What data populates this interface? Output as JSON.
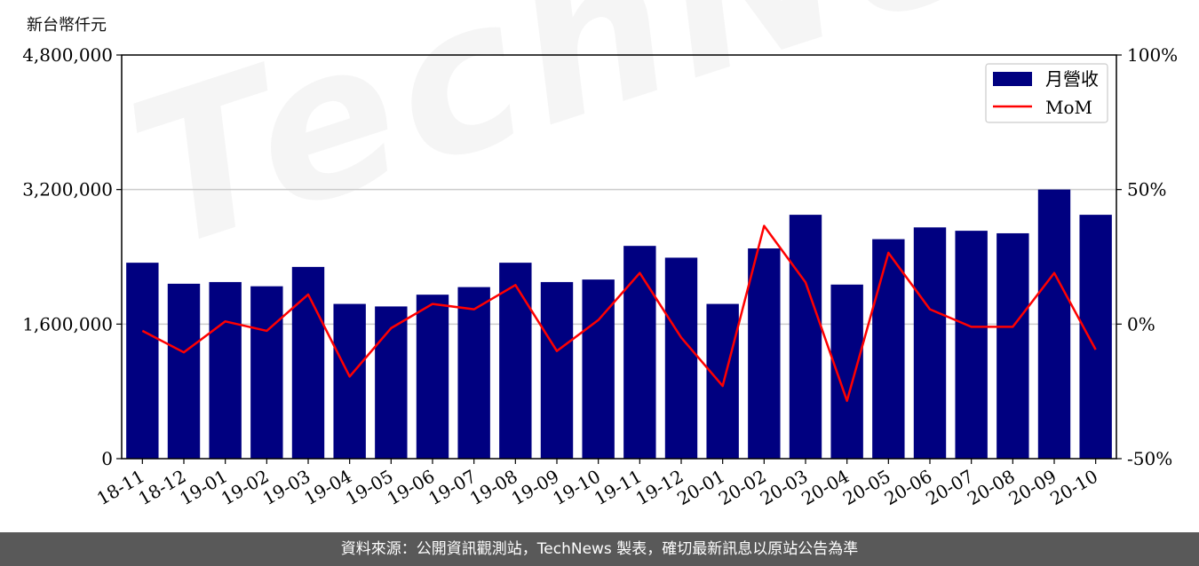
{
  "unit_label": "新台幣仟元",
  "watermark_text": "TechNews",
  "footer_text": "資料來源：公開資訊觀測站，TechNews 製表，確切最新訊息以原站公告為準",
  "colors": {
    "bar": "#000080",
    "line": "#ff0000",
    "grid": "#cccccc",
    "footer_bg": "#595959"
  },
  "chart_data": {
    "type": "bar",
    "categories": [
      "18-11",
      "18-12",
      "19-01",
      "19-02",
      "19-03",
      "19-04",
      "19-05",
      "19-06",
      "19-07",
      "19-08",
      "19-09",
      "19-10",
      "19-11",
      "19-12",
      "20-01",
      "20-02",
      "20-03",
      "20-04",
      "20-05",
      "20-06",
      "20-07",
      "20-08",
      "20-09",
      "20-10"
    ],
    "series": [
      {
        "name": "月營收",
        "type": "bar",
        "axis": "left",
        "values": [
          2330000,
          2080000,
          2100000,
          2050000,
          2280000,
          1840000,
          1810000,
          1950000,
          2040000,
          2330000,
          2100000,
          2130000,
          2530000,
          2390000,
          1840000,
          2500000,
          2900000,
          2070000,
          2610000,
          2750000,
          2710000,
          2680000,
          3200000,
          2900000
        ]
      },
      {
        "name": "MoM",
        "type": "line",
        "axis": "right",
        "values": [
          -2.5,
          -10.5,
          1,
          -2.5,
          11,
          -19.5,
          -1.5,
          7.5,
          5.5,
          14.5,
          -10,
          1.5,
          19,
          -5,
          -23,
          36.5,
          15.5,
          -28.5,
          26.5,
          5.5,
          -1,
          -1,
          19,
          -9.5
        ]
      }
    ],
    "y_left": {
      "ylim": [
        0,
        4800000
      ],
      "ticks": [
        "0",
        "1,600,000",
        "3,200,000",
        "4,800,000"
      ],
      "tick_values": [
        0,
        1600000,
        3200000,
        4800000
      ]
    },
    "y_right": {
      "ylim": [
        -50,
        100
      ],
      "ticks": [
        "-50%",
        "0%",
        "50%",
        "100%"
      ],
      "tick_values": [
        -50,
        0,
        50,
        100
      ]
    },
    "grid": "horizontal",
    "legend": {
      "placement": "top-right",
      "entries": [
        "月營收",
        "MoM"
      ]
    }
  }
}
